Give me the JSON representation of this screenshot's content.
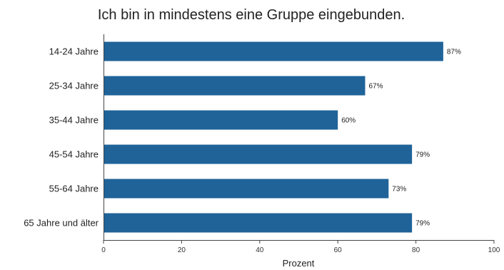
{
  "chart_data": {
    "type": "bar",
    "orientation": "horizontal",
    "title": "Ich bin in mindestens eine Gruppe eingebunden.",
    "xlabel": "Prozent",
    "ylabel": "",
    "categories": [
      "14-24 Jahre",
      "25-34 Jahre",
      "35-44 Jahre",
      "45-54 Jahre",
      "55-64 Jahre",
      "65 Jahre und älter"
    ],
    "values": [
      87,
      67,
      60,
      79,
      73,
      79
    ],
    "value_labels": [
      "87%",
      "67%",
      "60%",
      "79%",
      "73%",
      "79%"
    ],
    "xlim": [
      0,
      100
    ],
    "xticks": [
      0,
      20,
      40,
      60,
      80,
      100
    ],
    "grid": false,
    "bar_color": "#1f6399"
  }
}
